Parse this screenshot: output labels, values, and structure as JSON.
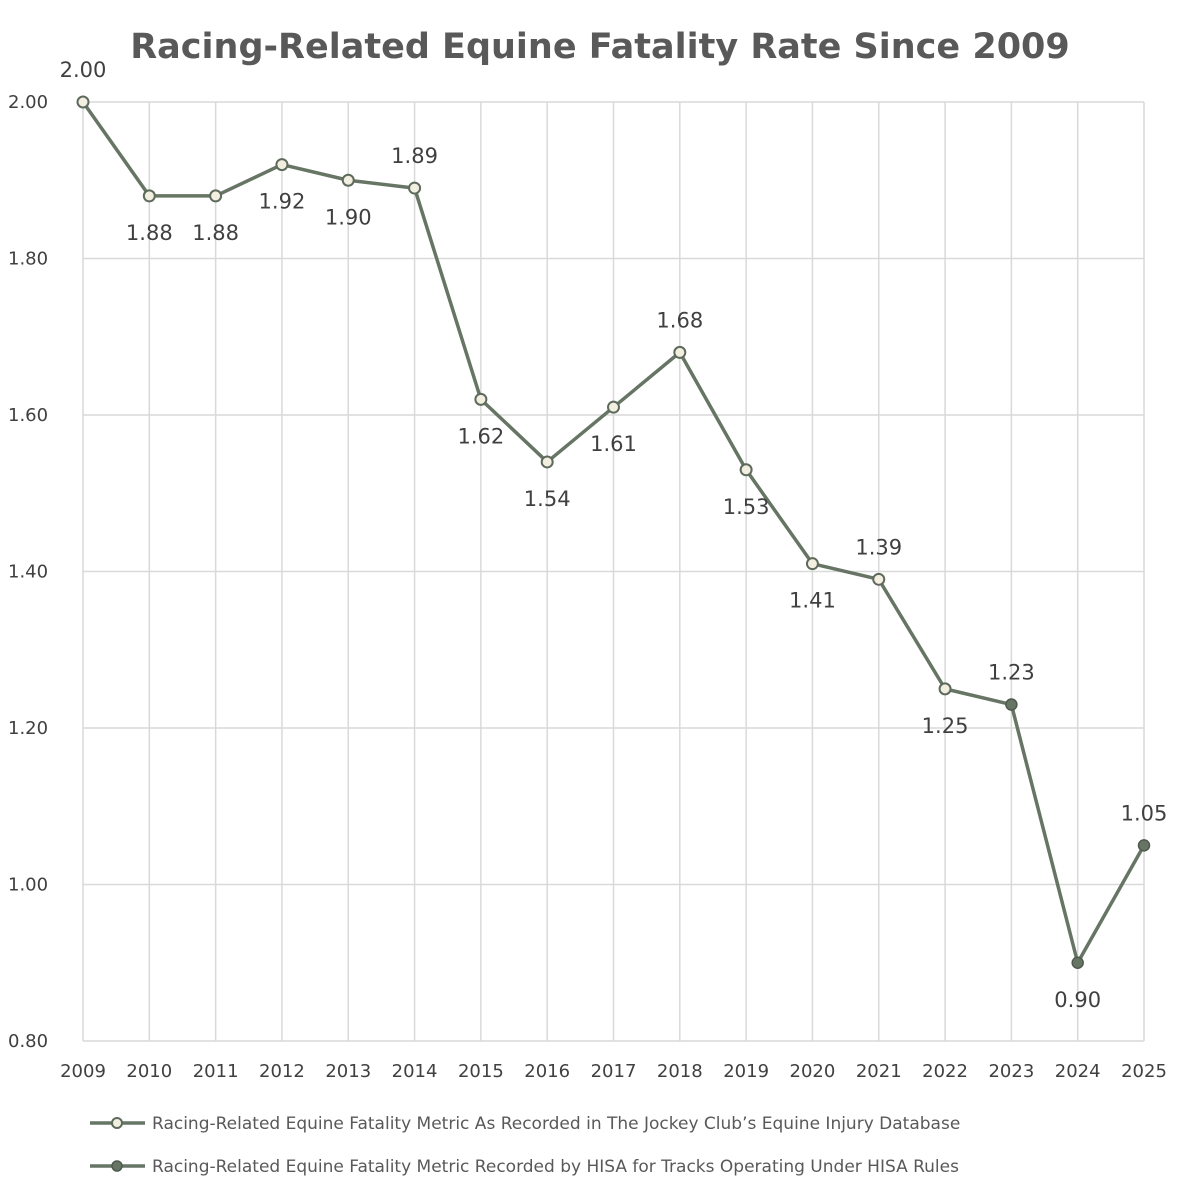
{
  "chart_data": {
    "type": "line",
    "title": "Racing-Related Equine Fatality Rate Since 2009",
    "xlabel": "",
    "ylabel": "",
    "x": [
      "2009",
      "2010",
      "2011",
      "2012",
      "2013",
      "2014",
      "2015",
      "2016",
      "2017",
      "2018",
      "2019",
      "2020",
      "2021",
      "2022",
      "2023",
      "2024",
      "2025"
    ],
    "y_ticks": [
      "0.80",
      "1.00",
      "1.20",
      "1.40",
      "1.60",
      "1.80",
      "2.00"
    ],
    "ylim": [
      0.8,
      2.0
    ],
    "grid": true,
    "legend_position": "bottom",
    "series": [
      {
        "name": "Racing-Related Equine Fatality Metric As Recorded in The Jockey Club’s Equine Injury Database",
        "marker": "hollow-circle",
        "x": [
          "2009",
          "2010",
          "2011",
          "2012",
          "2013",
          "2014",
          "2015",
          "2016",
          "2017",
          "2018",
          "2019",
          "2020",
          "2021",
          "2022"
        ],
        "values": [
          2.0,
          1.88,
          1.88,
          1.92,
          1.9,
          1.89,
          1.62,
          1.54,
          1.61,
          1.68,
          1.53,
          1.41,
          1.39,
          1.25
        ],
        "labels": [
          "2.00",
          "1.88",
          "1.88",
          "1.92",
          "1.90",
          "1.89",
          "1.62",
          "1.54",
          "1.61",
          "1.68",
          "1.53",
          "1.41",
          "1.39",
          "1.25"
        ],
        "label_side": [
          "above",
          "below",
          "below",
          "below",
          "below",
          "above",
          "below",
          "below",
          "below",
          "above",
          "below",
          "below",
          "above",
          "below"
        ]
      },
      {
        "name": "Racing-Related Equine Fatality Metric Recorded by HISA for Tracks Operating Under HISA Rules",
        "marker": "filled-circle",
        "x": [
          "2023",
          "2024",
          "2025"
        ],
        "values": [
          1.23,
          0.9,
          1.05
        ],
        "labels": [
          "1.23",
          "0.90",
          "1.05"
        ],
        "label_side": [
          "above",
          "below",
          "above"
        ]
      }
    ],
    "colors": {
      "line": "#677565",
      "hollow_marker_fill": "#f2efe1",
      "hollow_marker_stroke": "#5e6a5c",
      "filled_marker": "#677565",
      "grid": "#d9d9d9",
      "title": "#595959",
      "text": "#404040"
    }
  }
}
